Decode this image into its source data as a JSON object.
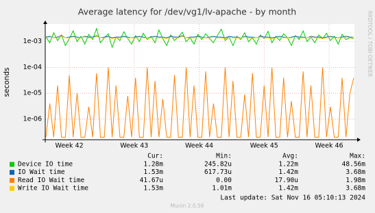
{
  "chart_data": {
    "type": "line",
    "title": "Average latency for /dev/vg1/lv-apache - by month",
    "y_label": "seconds",
    "side_text": "RRDTOOL / TOBI OETIKER",
    "log_scale": true,
    "grid": true,
    "ylim": [
      1.6e-07,
      0.0048
    ],
    "yticks": [
      {
        "value": 1e-06,
        "label": "1e-06"
      },
      {
        "value": 1e-05,
        "label": "1e-05"
      },
      {
        "value": 0.0001,
        "label": "1e-04"
      },
      {
        "value": 0.001,
        "label": "1e-03"
      }
    ],
    "xlim": [
      41.63,
      46.39
    ],
    "xticks": [
      {
        "value": 42,
        "label": "Week 42"
      },
      {
        "value": 43,
        "label": "Week 43"
      },
      {
        "value": 44,
        "label": "Week 44"
      },
      {
        "value": 45,
        "label": "Week 45"
      },
      {
        "value": 46,
        "label": "Week 46"
      }
    ],
    "x": [
      41.64,
      41.7,
      41.76,
      41.82,
      41.88,
      41.94,
      42.0,
      42.06,
      42.12,
      42.18,
      42.24,
      42.3,
      42.36,
      42.42,
      42.48,
      42.54,
      42.6,
      42.66,
      42.72,
      42.78,
      42.84,
      42.9,
      42.96,
      43.02,
      43.08,
      43.14,
      43.2,
      43.26,
      43.32,
      43.38,
      43.44,
      43.5,
      43.56,
      43.62,
      43.68,
      43.74,
      43.8,
      43.86,
      43.92,
      43.98,
      44.04,
      44.1,
      44.16,
      44.22,
      44.28,
      44.34,
      44.4,
      44.46,
      44.52,
      44.58,
      44.64,
      44.7,
      44.76,
      44.82,
      44.88,
      44.94,
      45.0,
      45.06,
      45.12,
      45.18,
      45.24,
      45.3,
      45.36,
      45.42,
      45.48,
      45.54,
      45.6,
      45.66,
      45.72,
      45.78,
      45.84,
      45.9,
      45.96,
      46.02,
      46.08,
      46.14,
      46.2,
      46.26,
      46.32,
      46.38
    ],
    "series": [
      {
        "name": "Device IO time",
        "color": "#00cc00",
        "values": [
          0.0015,
          0.0009,
          0.0022,
          0.0011,
          0.0018,
          0.0007,
          0.0013,
          0.0026,
          0.001,
          0.0016,
          0.0008,
          0.0019,
          0.0012,
          0.0032,
          0.0009,
          0.0014,
          0.002,
          0.0006,
          0.0015,
          0.0011,
          0.0024,
          0.0013,
          0.0008,
          0.0017,
          0.001,
          0.0021,
          0.0012,
          0.0016,
          0.0009,
          0.0028,
          0.0013,
          0.0007,
          0.0018,
          0.0011,
          0.0015,
          0.0023,
          0.001,
          0.0014,
          0.0008,
          0.0019,
          0.0012,
          0.002,
          0.0013,
          0.0009,
          0.0017,
          0.003,
          0.0011,
          0.0015,
          0.0007,
          0.0016,
          0.0012,
          0.0022,
          0.001,
          0.0014,
          0.0008,
          0.0018,
          0.0013,
          0.0025,
          0.0009,
          0.0016,
          0.0011,
          0.002,
          0.0014,
          0.0007,
          0.0017,
          0.0012,
          0.0026,
          0.001,
          0.0015,
          0.0009,
          0.0018,
          0.0013,
          0.0021,
          0.0011,
          0.0016,
          0.0008,
          0.0019,
          0.0012,
          0.0014,
          0.0013
        ]
      },
      {
        "name": "IO Wait time",
        "color": "#0066b3",
        "values": [
          0.0015,
          0.0016,
          0.0014,
          0.0015,
          0.0017,
          0.0014,
          0.0015,
          0.0016,
          0.0015,
          0.0014,
          0.0016,
          0.0015,
          0.0015,
          0.0017,
          0.0014,
          0.0015,
          0.0016,
          0.0014,
          0.0015,
          0.0015,
          0.0016,
          0.0015,
          0.0014,
          0.0015,
          0.0016,
          0.0015,
          0.0014,
          0.0015,
          0.0016,
          0.0015,
          0.0015,
          0.0014,
          0.0016,
          0.0015,
          0.0015,
          0.0017,
          0.0014,
          0.0015,
          0.0015,
          0.0016,
          0.0015,
          0.0014,
          0.0015,
          0.0016,
          0.0015,
          0.0015,
          0.0014,
          0.0016,
          0.0015,
          0.0015,
          0.0014,
          0.0016,
          0.0015,
          0.0015,
          0.0014,
          0.0016,
          0.0015,
          0.0015,
          0.0014,
          0.0015,
          0.0016,
          0.0015,
          0.0014,
          0.0015,
          0.0016,
          0.0015,
          0.0015,
          0.0014,
          0.0016,
          0.0015,
          0.0015,
          0.0014,
          0.0015,
          0.0016,
          0.0015,
          0.0014,
          0.0015,
          0.0016,
          0.0015,
          0.0015
        ]
      },
      {
        "name": "Read IO Wait time",
        "color": "#ff8000",
        "values": [
          2e-07,
          4e-06,
          2e-07,
          2e-05,
          2e-07,
          2e-07,
          5e-05,
          2e-07,
          1e-05,
          2e-07,
          2e-07,
          3e-06,
          2e-07,
          6e-05,
          2e-07,
          2e-07,
          0.0001,
          2e-07,
          2e-05,
          2e-07,
          2e-07,
          8e-06,
          2e-07,
          4e-05,
          2e-07,
          2e-07,
          0.0001,
          2e-07,
          3e-05,
          2e-07,
          6e-06,
          2e-07,
          2e-07,
          5e-05,
          2e-07,
          2e-07,
          0.0001,
          2e-07,
          2e-05,
          2e-07,
          2e-07,
          7e-05,
          2e-07,
          4e-06,
          2e-07,
          2e-07,
          0.0001,
          2e-07,
          3e-05,
          2e-07,
          2e-07,
          9e-06,
          2e-07,
          6e-05,
          2e-07,
          2e-07,
          2e-05,
          2e-07,
          0.0001,
          2e-07,
          2e-07,
          4e-05,
          2e-07,
          5e-06,
          2e-07,
          2e-07,
          7e-05,
          2e-07,
          2e-05,
          2e-07,
          2e-07,
          0.0001,
          2e-07,
          3e-06,
          2e-07,
          2e-07,
          4e-05,
          2e-07,
          1e-05,
          4e-05
        ]
      },
      {
        "name": "Write IO Wait time",
        "color": "#ffcc00",
        "values": [
          0.0014,
          0.0015,
          0.0014,
          0.0014,
          0.0016,
          0.0014,
          0.0014,
          0.0015,
          0.0014,
          0.0014,
          0.0015,
          0.0014,
          0.0014,
          0.0016,
          0.0014,
          0.0014,
          0.0015,
          0.0013,
          0.0014,
          0.0014,
          0.0015,
          0.0014,
          0.0014,
          0.0014,
          0.0015,
          0.0014,
          0.0014,
          0.0014,
          0.0015,
          0.0014,
          0.0014,
          0.0013,
          0.0015,
          0.0014,
          0.0014,
          0.0016,
          0.0014,
          0.0014,
          0.0014,
          0.0015,
          0.0014,
          0.0014,
          0.0014,
          0.0015,
          0.0014,
          0.0014,
          0.0013,
          0.0015,
          0.0014,
          0.0014,
          0.0014,
          0.0015,
          0.0014,
          0.0014,
          0.0014,
          0.0015,
          0.0014,
          0.0014,
          0.0013,
          0.0014,
          0.0015,
          0.0014,
          0.0014,
          0.0014,
          0.0015,
          0.0014,
          0.0014,
          0.0014,
          0.0015,
          0.0014,
          0.0014,
          0.0013,
          0.0014,
          0.0015,
          0.0014,
          0.0014,
          0.0014,
          0.0015,
          0.0014,
          0.0015
        ]
      }
    ],
    "summary_headers": [
      "Cur:",
      "Min:",
      "Avg:",
      "Max:"
    ],
    "summary": [
      [
        "1.28m",
        "245.82u",
        "1.22m",
        "48.56m"
      ],
      [
        "1.53m",
        "617.73u",
        "1.42m",
        "3.68m"
      ],
      [
        "41.67u",
        "0.00",
        "17.90u",
        "1.98m"
      ],
      [
        "1.53m",
        "1.01m",
        "1.42m",
        "3.68m"
      ]
    ],
    "last_update": "Last update: Sat Nov 16 05:10:13 2024",
    "footer": "Munin 2.0.56"
  }
}
